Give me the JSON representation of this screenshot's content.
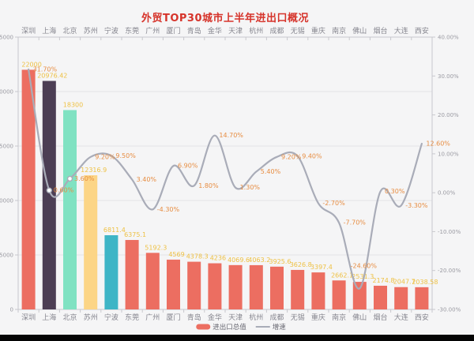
{
  "chart_data": {
    "type": "bar+line",
    "title": "外贸TOP30城市上半年进出口概况",
    "categories": [
      "深圳",
      "上海",
      "北京",
      "苏州",
      "宁波",
      "东莞",
      "广州",
      "厦门",
      "青岛",
      "金华",
      "天津",
      "杭州",
      "成都",
      "无锡",
      "重庆",
      "南京",
      "佛山",
      "烟台",
      "大连",
      "西安"
    ],
    "series": [
      {
        "name": "进出口总值",
        "type": "bar",
        "y_axis": "left",
        "values": [
          22000,
          20976.42,
          18300,
          12316.9,
          6811.4,
          6375.1,
          5192.3,
          4569,
          4378.3,
          4236,
          4069.6,
          4063.2,
          3925.6,
          3626.8,
          3397.4,
          2662.1,
          2531.3,
          2174.8,
          2047.7,
          2038.58
        ],
        "value_labels": [
          "22000",
          "20976.42",
          "18300",
          "12316.9",
          "6811.4",
          "6375.1",
          "5192.3",
          "4569",
          "4378.3",
          "4236",
          "4069.6",
          "4063.2",
          "3925.6",
          "3626.8",
          "3397.4",
          "2662.1",
          "2531.3",
          "2174.8",
          "2047.7",
          "2038.58"
        ],
        "default_color": "#ec6e61",
        "special_colors": {
          "1": "#4c3e54",
          "2": "#80e2c2",
          "3": "#fcd586",
          "4": "#3eb5c6"
        },
        "label_color": "#eec144"
      },
      {
        "name": "增速",
        "type": "line",
        "y_axis": "right",
        "values": [
          31.7,
          0.6,
          3.6,
          9.2,
          9.5,
          3.4,
          -4.3,
          6.9,
          1.8,
          14.7,
          1.3,
          5.4,
          9.2,
          9.4,
          -2.7,
          -7.7,
          -24.6,
          0.3,
          -3.3,
          12.6
        ],
        "value_labels": [
          "31.70%",
          "0.60%",
          "3.60%",
          "9.20%",
          "9.50%",
          "3.40%",
          "-4.30%",
          "6.90%",
          "1.80%",
          "14.70%",
          "1.30%",
          "5.40%",
          "9.20%",
          "9.40%",
          "-2.70%",
          "-7.70%",
          "-24.60%",
          "0.30%",
          "-3.30%",
          "12.60%"
        ],
        "color": "#a9acb8",
        "label_color": "#e78d42"
      }
    ],
    "left_axis": {
      "min": 0,
      "max": 25000,
      "tick_labels": [
        "0",
        "5000",
        "10000",
        "15000",
        "20000",
        "25000"
      ]
    },
    "right_axis": {
      "min": -30,
      "max": 40,
      "tick_labels": [
        "-30.00%",
        "-20.00%",
        "-10.00%",
        "0.00%",
        "10.00%",
        "20.00%",
        "30.00%",
        "40.00%"
      ]
    },
    "legend": {
      "position": "bottom",
      "items": [
        {
          "label": "进出口总值",
          "marker": "bar",
          "color": "#ec6e61"
        },
        {
          "label": "增速",
          "marker": "line",
          "color": "#a9acb8"
        }
      ]
    },
    "grid": true,
    "x_axis_duplicated_top": true,
    "layout_hints": {
      "label_offset_overrides": {
        "16": [
          5,
          -26
        ]
      },
      "visible_symbol_indices": [
        1,
        2
      ],
      "legend_center_x": 305
    }
  },
  "theme": {
    "title_color": "#d6342b",
    "background": "#f5f5f6",
    "axis_text_color": "#9a9aa2",
    "category_text_color": "#86868f",
    "grid_line_color": "#e3e3e7",
    "axis_line_color": "#c8c8cd",
    "legend_text_color": "#666670",
    "footer_bar_color": "#050505"
  }
}
